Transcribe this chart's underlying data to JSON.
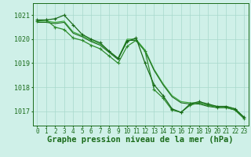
{
  "title": "Graphe pression niveau de la mer (hPa)",
  "xlabel_hours": [
    0,
    1,
    2,
    3,
    4,
    5,
    6,
    7,
    8,
    9,
    10,
    11,
    12,
    13,
    14,
    15,
    16,
    17,
    18,
    19,
    20,
    21,
    22,
    23
  ],
  "series": [
    {
      "values": [
        1020.8,
        1020.8,
        1020.85,
        1021.0,
        1020.6,
        1020.2,
        1020.0,
        1019.85,
        1019.5,
        1019.2,
        1019.9,
        1020.05,
        1019.0,
        1018.1,
        1017.65,
        1017.1,
        1016.95,
        1017.3,
        1017.4,
        1017.3,
        1017.2,
        1017.2,
        1017.1,
        1016.75
      ],
      "color": "#1a6b1a",
      "linewidth": 0.9,
      "marker": "+",
      "markersize": 3.5,
      "markeredgewidth": 0.8,
      "zorder": 3
    },
    {
      "values": [
        1020.75,
        1020.8,
        1020.5,
        1020.4,
        1020.05,
        1019.95,
        1019.75,
        1019.6,
        1019.3,
        1019.0,
        1019.7,
        1019.95,
        1019.5,
        1017.9,
        1017.55,
        1017.05,
        1016.95,
        1017.25,
        1017.35,
        1017.25,
        1017.15,
        1017.15,
        1017.05,
        1016.7
      ],
      "color": "#2d8c2d",
      "linewidth": 0.9,
      "marker": "+",
      "markersize": 3.5,
      "markeredgewidth": 0.8,
      "zorder": 2
    },
    {
      "values": [
        1020.75,
        1020.75,
        1020.7,
        1020.75,
        1020.3,
        1020.15,
        1019.95,
        1019.8,
        1019.5,
        1019.2,
        1020.0,
        1020.0,
        1019.55,
        1018.75,
        1018.15,
        1017.65,
        1017.4,
        1017.35,
        1017.35,
        1017.25,
        1017.2,
        1017.2,
        1017.1,
        1016.75
      ],
      "color": "#3aaa3a",
      "linewidth": 0.8,
      "marker": null,
      "markersize": 0,
      "zorder": 1
    },
    {
      "values": [
        1020.7,
        1020.7,
        1020.65,
        1020.7,
        1020.25,
        1020.1,
        1019.9,
        1019.75,
        1019.45,
        1019.15,
        1019.95,
        1019.95,
        1019.5,
        1018.7,
        1018.1,
        1017.6,
        1017.35,
        1017.3,
        1017.3,
        1017.2,
        1017.15,
        1017.15,
        1017.05,
        1016.7
      ],
      "color": "#1a6b1a",
      "linewidth": 0.8,
      "marker": null,
      "markersize": 0,
      "zorder": 1
    }
  ],
  "yticks": [
    1017,
    1018,
    1019,
    1020,
    1021
  ],
  "ylim": [
    1016.4,
    1021.5
  ],
  "xlim": [
    -0.5,
    23.5
  ],
  "bg_color": "#cff0e8",
  "grid_color": "#a8d8cc",
  "tick_color": "#1a6b1a",
  "label_color": "#1a6b1a",
  "title_color": "#1a6b1a",
  "title_fontsize": 7.5,
  "tick_fontsize": 5.5,
  "ytick_fontsize": 6.0
}
